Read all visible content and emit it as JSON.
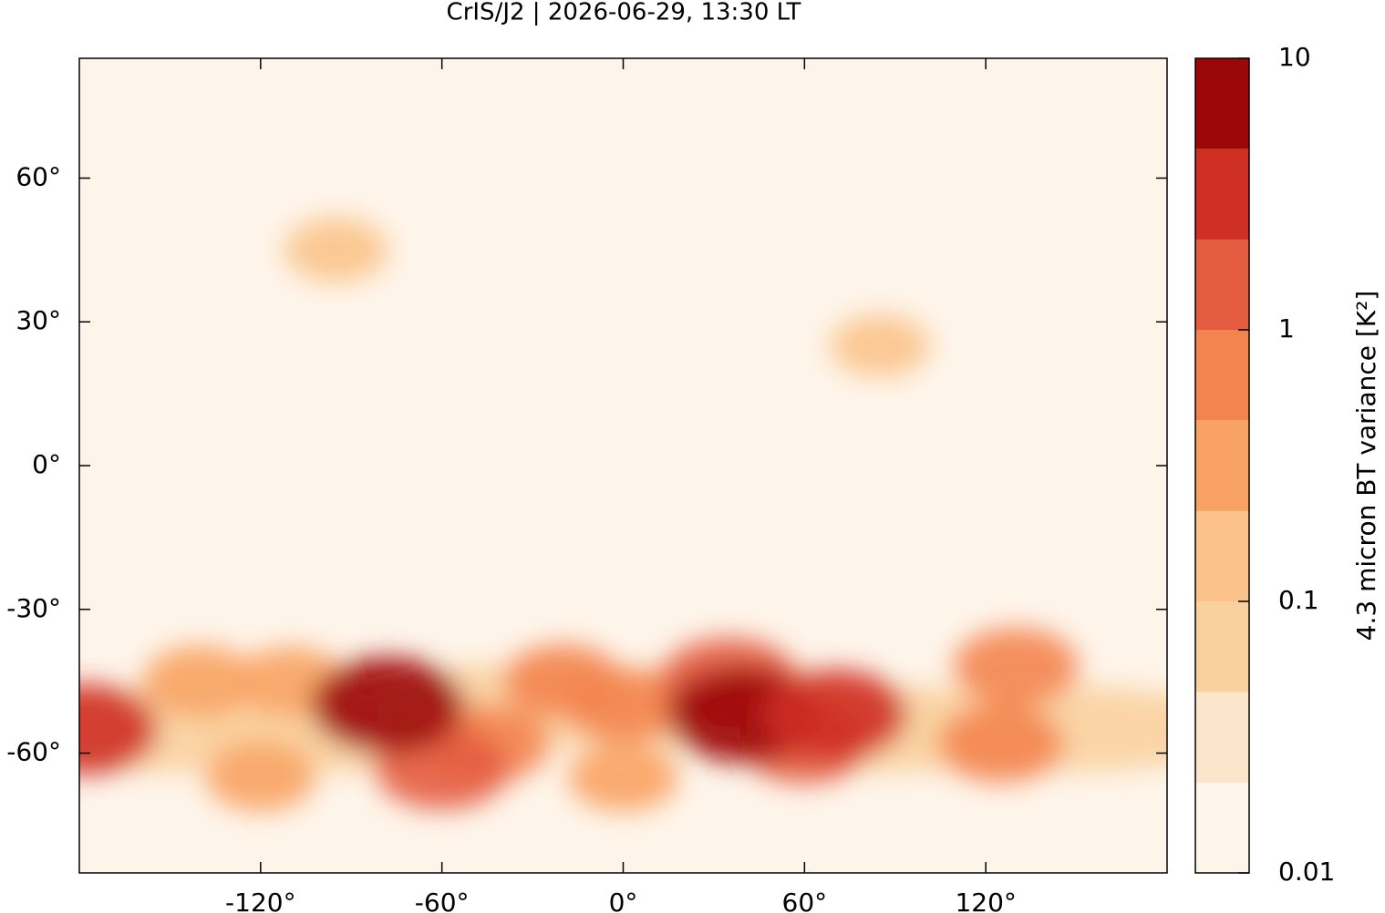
{
  "chart_data": {
    "type": "map",
    "title": "CrIS/J2 | 2026-06-29, 13:30 LT",
    "xlim": [
      -180,
      180
    ],
    "ylim": [
      -85,
      85
    ],
    "xticks": [
      {
        "value": -120,
        "label": "-120°"
      },
      {
        "value": -60,
        "label": "-60°"
      },
      {
        "value": 0,
        "label": "0°"
      },
      {
        "value": 60,
        "label": "60°"
      },
      {
        "value": 120,
        "label": "120°"
      }
    ],
    "yticks": [
      {
        "value": -60,
        "label": "-60°"
      },
      {
        "value": -30,
        "label": "-30°"
      },
      {
        "value": 0,
        "label": "0°"
      },
      {
        "value": 30,
        "label": "30°"
      },
      {
        "value": 60,
        "label": "60°"
      }
    ],
    "background_color": "#fef5ea",
    "colorbar": {
      "label": "4.3 micron BT variance [K²]",
      "log": true,
      "lim": [
        0.01,
        10
      ],
      "ticks": [
        0.01,
        0.1,
        1,
        10
      ],
      "levels": [
        0.01,
        0.0215,
        0.0464,
        0.1,
        0.215,
        0.464,
        1,
        2.15,
        4.64,
        10
      ],
      "colors": [
        "#fef5ea",
        "#fbe6cc",
        "#f9d09e",
        "#fbc38a",
        "#f8a263",
        "#f3844f",
        "#e45c40",
        "#cf2e22",
        "#9c0707"
      ]
    },
    "series": [
      {
        "name": "variance",
        "x": [
          -150,
          -90,
          -30,
          30,
          90,
          150,
          -120,
          0,
          85,
          -95,
          -140,
          -110,
          -45,
          -20,
          0,
          130,
          125,
          60,
          -60,
          35,
          -178,
          -78,
          40,
          70
        ],
        "y": [
          -55,
          -55,
          -50,
          -50,
          -55,
          -55,
          -65,
          -65,
          25,
          45,
          -45,
          -45,
          -58,
          -45,
          -50,
          -42,
          -58,
          -58,
          -63,
          -45,
          -55,
          -50,
          -52,
          -52
        ],
        "values": [
          0.06,
          0.06,
          0.06,
          0.06,
          0.06,
          0.06,
          0.3,
          0.3,
          0.15,
          0.2,
          0.4,
          0.3,
          0.8,
          0.5,
          0.5,
          0.8,
          0.8,
          1,
          1.5,
          2,
          3,
          5,
          5,
          3
        ]
      }
    ]
  }
}
